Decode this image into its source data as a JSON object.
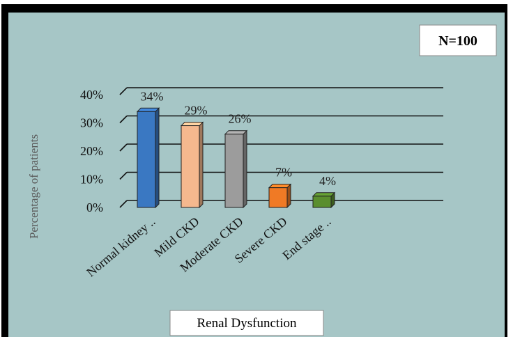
{
  "chart_data": {
    "type": "bar",
    "title": "",
    "xlabel": "Renal Dysfunction",
    "ylabel": "Percentage of patients",
    "ylim": [
      0,
      40
    ],
    "yticks": [
      "0%",
      "10%",
      "20%",
      "30%",
      "40%"
    ],
    "categories": [
      "Normal kidney ..",
      "Mild CKD",
      "Moderate CKD",
      "Severe CKD",
      "End stage .."
    ],
    "values": [
      34,
      29,
      26,
      7,
      4
    ],
    "data_labels": [
      "34%",
      "29%",
      "26%",
      "7%",
      "4%"
    ],
    "colors": [
      "#3a78c2",
      "#f5b88e",
      "#9c9c9c",
      "#f07a25",
      "#5a8e2e"
    ],
    "grid": true,
    "legend": "none",
    "annotation": "N=100",
    "background": "#a6c6c6"
  }
}
